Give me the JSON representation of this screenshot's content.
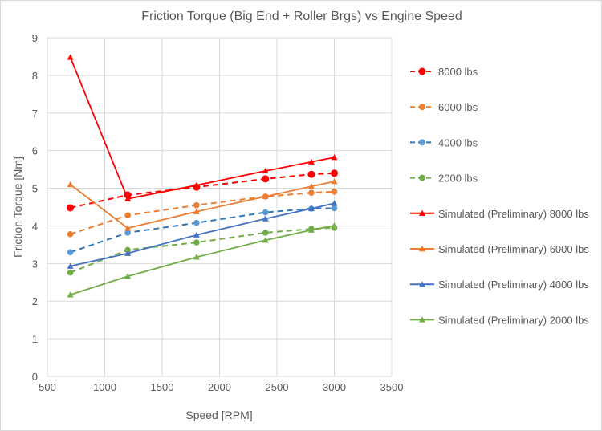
{
  "chart_data": {
    "type": "line",
    "title": "Friction Torque (Big End + Roller Brgs) vs Engine Speed",
    "xlabel": "Speed [RPM]",
    "ylabel": "Friction Torque [Nm]",
    "xlim": [
      500,
      3500
    ],
    "ylim": [
      0,
      9
    ],
    "xticks": [
      500,
      1000,
      1500,
      2000,
      2500,
      3000,
      3500
    ],
    "yticks": [
      0,
      1,
      2,
      3,
      4,
      5,
      6,
      7,
      8,
      9
    ],
    "grid": true,
    "legend_position": "right",
    "x": [
      700,
      1200,
      1800,
      2400,
      2800,
      3000
    ],
    "series": [
      {
        "name": "8000 lbs",
        "color": "#ff0000",
        "dash": true,
        "marker": "circle",
        "values": [
          4.48,
          4.82,
          5.03,
          5.25,
          5.37,
          5.4
        ]
      },
      {
        "name": "6000 lbs",
        "color": "#ed7d31",
        "dash": true,
        "marker": "circle",
        "values": [
          3.78,
          4.28,
          4.55,
          4.78,
          4.88,
          4.91
        ]
      },
      {
        "name": "4000 lbs",
        "color": "#2e75b6",
        "markerColor": "#5b9bd5",
        "dash": true,
        "marker": "circle",
        "values": [
          3.3,
          3.82,
          4.08,
          4.36,
          4.46,
          4.47
        ]
      },
      {
        "name": "2000 lbs",
        "color": "#70ad47",
        "dash": true,
        "marker": "circle",
        "values": [
          2.76,
          3.36,
          3.56,
          3.82,
          3.92,
          3.95
        ]
      },
      {
        "name": "Simulated (Preliminary) 8000 lbs",
        "color": "#ff0000",
        "dash": false,
        "marker": "triangle",
        "values": [
          8.48,
          4.72,
          5.08,
          5.46,
          5.7,
          5.82
        ]
      },
      {
        "name": "Simulated (Preliminary) 6000 lbs",
        "color": "#ed7d31",
        "dash": false,
        "marker": "triangle",
        "values": [
          5.1,
          3.94,
          4.38,
          4.78,
          5.05,
          5.18
        ]
      },
      {
        "name": "Simulated (Preliminary) 4000 lbs",
        "color": "#4472c4",
        "dash": false,
        "marker": "triangle",
        "values": [
          2.93,
          3.27,
          3.76,
          4.19,
          4.46,
          4.6
        ]
      },
      {
        "name": "Simulated (Preliminary) 2000 lbs",
        "color": "#70ad47",
        "dash": false,
        "marker": "triangle",
        "values": [
          2.17,
          2.66,
          3.17,
          3.62,
          3.89,
          4.01
        ]
      }
    ]
  }
}
